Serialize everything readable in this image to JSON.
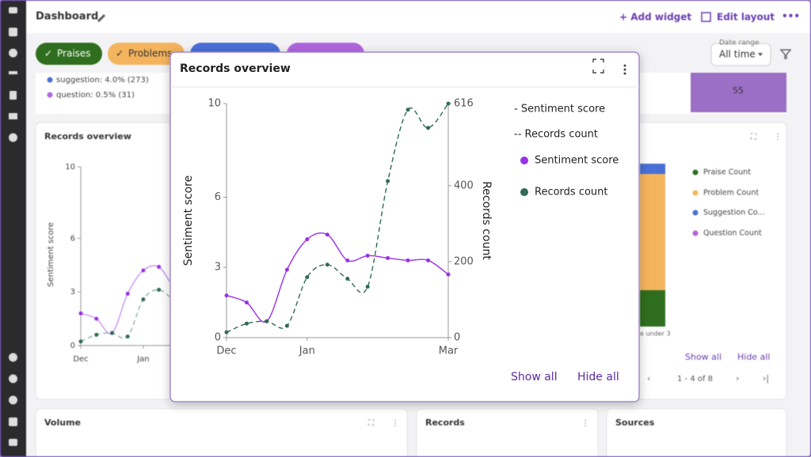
{
  "header": {
    "title": "Dashboard",
    "add_widget": "+ Add widget",
    "edit_layout": "Edit layout",
    "more": "•••"
  },
  "filters": [
    "Praises",
    "Problems"
  ],
  "date_range": {
    "label": "Date range",
    "value": "All time"
  },
  "summary": {
    "legend": [
      "suggestion: 4.0% (273)",
      "question: 0.5% (31)"
    ],
    "tile_value": 55
  },
  "breakdown_card": {
    "legend": [
      "Praise Count",
      "Problem Count",
      "Suggestion Co...",
      "Question Count"
    ],
    "axis_label": "e under 3",
    "show_all": "Show all",
    "hide_all": "Hide all",
    "pagination": "1 - 4 of 8"
  },
  "cards": [
    "Volume",
    "Records",
    "Sources"
  ],
  "chart_data": {
    "type": "line",
    "title": "Records overview",
    "categories": [
      "Dec",
      null,
      null,
      null,
      "Jan",
      null,
      null,
      null,
      null,
      null,
      null,
      "Mar"
    ],
    "series": [
      {
        "name": "Sentiment score",
        "color": "#9b30e8",
        "values": [
          1.8,
          1.5,
          0.7,
          2.9,
          4.2,
          4.4,
          3.3,
          3.5,
          3.4,
          3.3,
          3.3,
          2.7
        ]
      },
      {
        "name": "Records count",
        "color": "#2f6b55",
        "axis": "y2",
        "dashed": true,
        "values": [
          14,
          37,
          43,
          31,
          159,
          192,
          155,
          134,
          412,
          600,
          552,
          616
        ]
      }
    ],
    "ylim": [
      0,
      10
    ],
    "yticks": [
      0,
      3,
      6,
      10
    ],
    "y2lim": [
      0,
      616
    ],
    "y2ticks": [
      0,
      200,
      400,
      616
    ],
    "y_label": "Sentiment score",
    "y2_label": "Records count",
    "legend_lines": [
      "- Sentiment score",
      "-- Records count"
    ],
    "show_all": "Show all",
    "hide_all": "Hide all"
  }
}
